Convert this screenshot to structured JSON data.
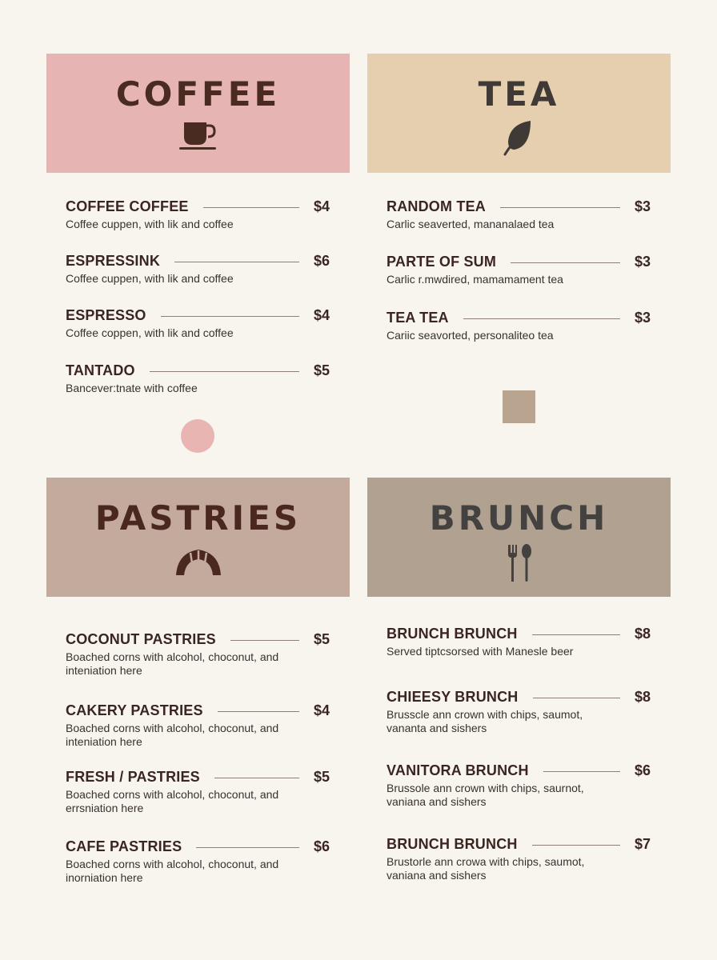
{
  "colors": {
    "background": "#f7f5ee",
    "coffee": "#e6b5b3",
    "tea": "#e6cfae",
    "pastries": "#c3aa9c",
    "brunch": "#b0a190",
    "accent_circle": "#e8b5b3",
    "accent_square": "#b8a48f"
  },
  "sections": {
    "coffee": {
      "title": "COFFEE",
      "icon": "coffee-cup-icon",
      "items": [
        {
          "name": "COFFEE COFFEE",
          "price": "$4",
          "desc": "Coffee cuppen, with lik and coffee"
        },
        {
          "name": "ESPRESSINK",
          "price": "$6",
          "desc": "Coffee cuppen, with lik and coffee"
        },
        {
          "name": "ESPRESSO",
          "price": "$4",
          "desc": "Coffee coppen, with lik and coffee"
        },
        {
          "name": "TANTADO",
          "price": "$5",
          "desc": "Bancever:tnate with coffee"
        }
      ]
    },
    "tea": {
      "title": "TEA",
      "icon": "leaf-icon",
      "items": [
        {
          "name": "RANDOM TEA",
          "price": "$3",
          "desc": "Carlic seaverted, mananalaed tea"
        },
        {
          "name": "PARTE OF SUM",
          "price": "$3",
          "desc": "Carlic r.mwdired, mamamament tea"
        },
        {
          "name": "TEA TEA",
          "price": "$3",
          "desc": "Cariic seavorted, personaliteo tea"
        }
      ]
    },
    "pastries": {
      "title": "PASTRIES",
      "icon": "croissant-icon",
      "items": [
        {
          "name": "COCONUT PASTRIES",
          "price": "$5",
          "desc": "Boached corns with alcohol, choconut, and inteniation here"
        },
        {
          "name": "CAKERY PASTRIES",
          "price": "$4",
          "desc": "Boached corns with alcohol, choconut, and inteniation here"
        },
        {
          "name": "FRESH / PASTRIES",
          "price": "$5",
          "desc": "Boached corns with alcohol, choconut, and errsniation here"
        },
        {
          "name": "CAFE PASTRIES",
          "price": "$6",
          "desc": "Boached corns with alcohol, choconut, and inorniation here"
        }
      ]
    },
    "brunch": {
      "title": "BRUNCH",
      "icon": "fork-spoon-icon",
      "items": [
        {
          "name": "BRUNCH BRUNCH",
          "price": "$8",
          "desc": "Served tiptcsorsed with Manesle beer"
        },
        {
          "name": "CHIEESY BRUNCH",
          "price": "$8",
          "desc": "Brusscle ann crown with chips, saumot, vananta and sishers"
        },
        {
          "name": "VANITORA BRUNCH",
          "price": "$6",
          "desc": "Brussole ann crown with chips, saurnot, vaniana and sishers"
        },
        {
          "name": "BRUNCH BRUNCH",
          "price": "$7",
          "desc": "Brustorle ann crowa with chips, saumot, vaniana and sishers"
        }
      ]
    }
  }
}
